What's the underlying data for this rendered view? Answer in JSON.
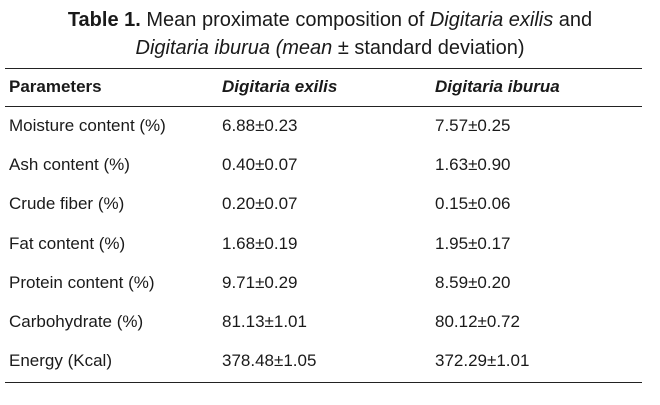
{
  "caption": {
    "label": "Table 1.",
    "text_part1": " Mean proximate composition of ",
    "species1": "Digitaria exilis",
    "text_part2": " and",
    "species2": "Digitaria iburua",
    "text_part3": " (mean",
    "text_part4": " ± standard deviation)"
  },
  "table": {
    "headers": [
      "Parameters",
      "Digitaria exilis",
      "Digitaria iburua"
    ],
    "rows": [
      [
        "Moisture content (%)",
        "6.88±0.23",
        "7.57±0.25"
      ],
      [
        "Ash content (%)",
        "0.40±0.07",
        "1.63±0.90"
      ],
      [
        "Crude fiber (%)",
        "0.20±0.07",
        "0.15±0.06"
      ],
      [
        "Fat content (%)",
        "1.68±0.19",
        "1.95±0.17"
      ],
      [
        "Protein content (%)",
        "9.71±0.29",
        "8.59±0.20"
      ],
      [
        "Carbohydrate (%)",
        "81.13±1.01",
        "80.12±0.72"
      ],
      [
        "Energy (Kcal)",
        "378.48±1.05",
        "372.29±1.01"
      ]
    ]
  }
}
